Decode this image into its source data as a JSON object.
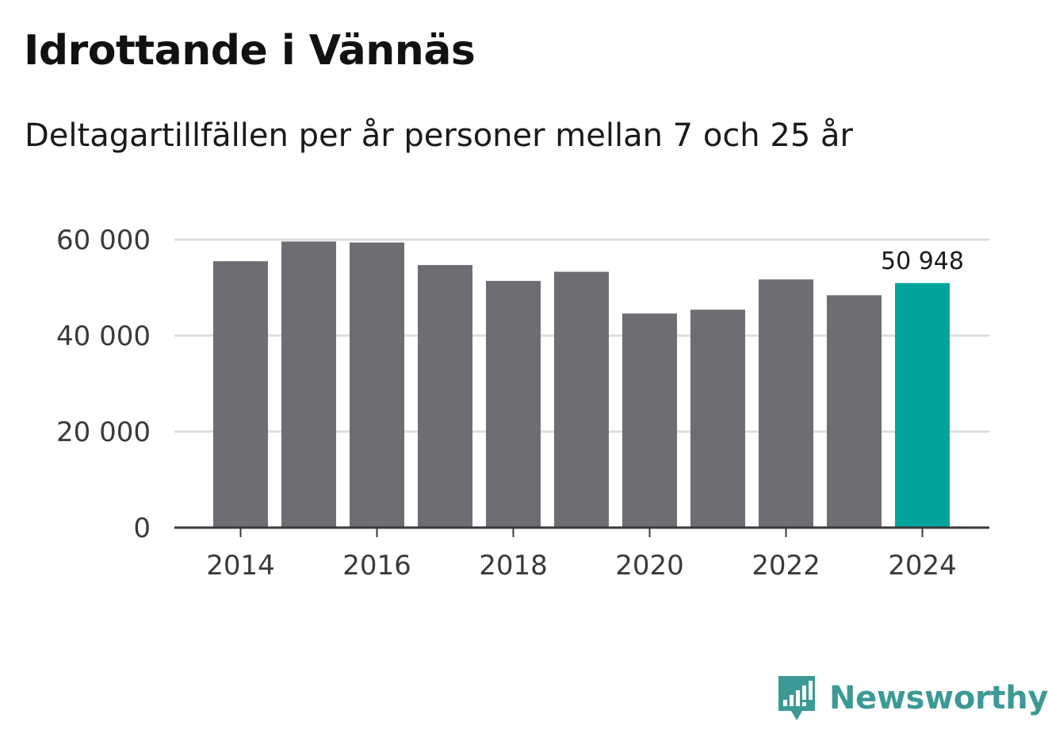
{
  "header": {
    "title": "Idrottande i Vännäs",
    "subtitle": "Deltagartillfällen per år personer mellan 7 och 25 år"
  },
  "brand": {
    "name": "Newsworthy",
    "icon": "newsworthy-logo-icon",
    "color": "#3c9a96"
  },
  "colors": {
    "bar": "#6e6d73",
    "highlight": "#00a49a",
    "grid": "#dddddd",
    "axis": "#3a3a3a"
  },
  "chart_data": {
    "type": "bar",
    "title": "Idrottande i Vännäs",
    "subtitle": "Deltagartillfällen per år personer mellan 7 och 25 år",
    "xlabel": "",
    "ylabel": "",
    "categories": [
      "2014",
      "2015",
      "2016",
      "2017",
      "2018",
      "2019",
      "2020",
      "2021",
      "2022",
      "2023",
      "2024"
    ],
    "values": [
      55500,
      59600,
      59400,
      54700,
      51400,
      53300,
      44600,
      45400,
      51700,
      48400,
      50948
    ],
    "highlight_index": 10,
    "highlight_label": "50 948",
    "x_tick_labels": [
      "2014",
      "2016",
      "2018",
      "2020",
      "2022",
      "2024"
    ],
    "y_ticks": [
      0,
      20000,
      40000,
      60000
    ],
    "y_tick_labels": [
      "0",
      "20 000",
      "40 000",
      "60 000"
    ],
    "ylim": [
      0,
      60000
    ],
    "grid": true,
    "legend": "none"
  }
}
